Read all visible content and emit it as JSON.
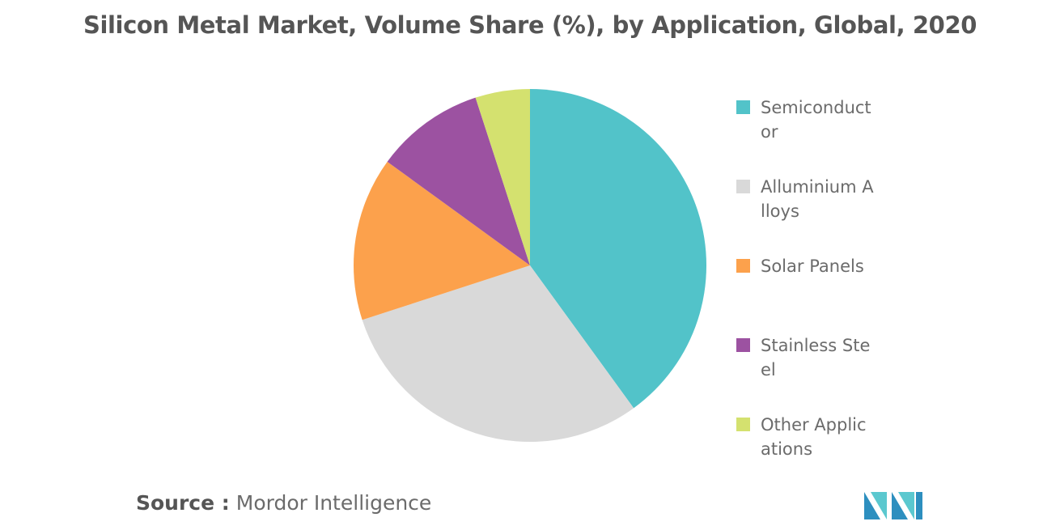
{
  "title": "Silicon Metal Market, Volume Share (%), by Application, Global, 2020",
  "source": {
    "prefix": "Source :",
    "name": "Mordor Intelligence"
  },
  "logo_icon": "mordor-intelligence-logo",
  "chart_data": {
    "type": "pie",
    "title": "Silicon Metal Market, Volume Share (%), by Application, Global, 2020",
    "start_angle": "12 o'clock, clockwise",
    "legend_placement": "right",
    "slices": [
      {
        "label": "Semiconductor",
        "value": 40,
        "color": "#52c3c9"
      },
      {
        "label": "Alluminium Alloys",
        "value": 30,
        "color": "#d9d9d9"
      },
      {
        "label": "Solar Panels",
        "value": 15,
        "color": "#fca14c"
      },
      {
        "label": "Stainless Steel",
        "value": 10,
        "color": "#9c52a1"
      },
      {
        "label": "Other Applications",
        "value": 5,
        "color": "#d4e16f"
      }
    ]
  }
}
